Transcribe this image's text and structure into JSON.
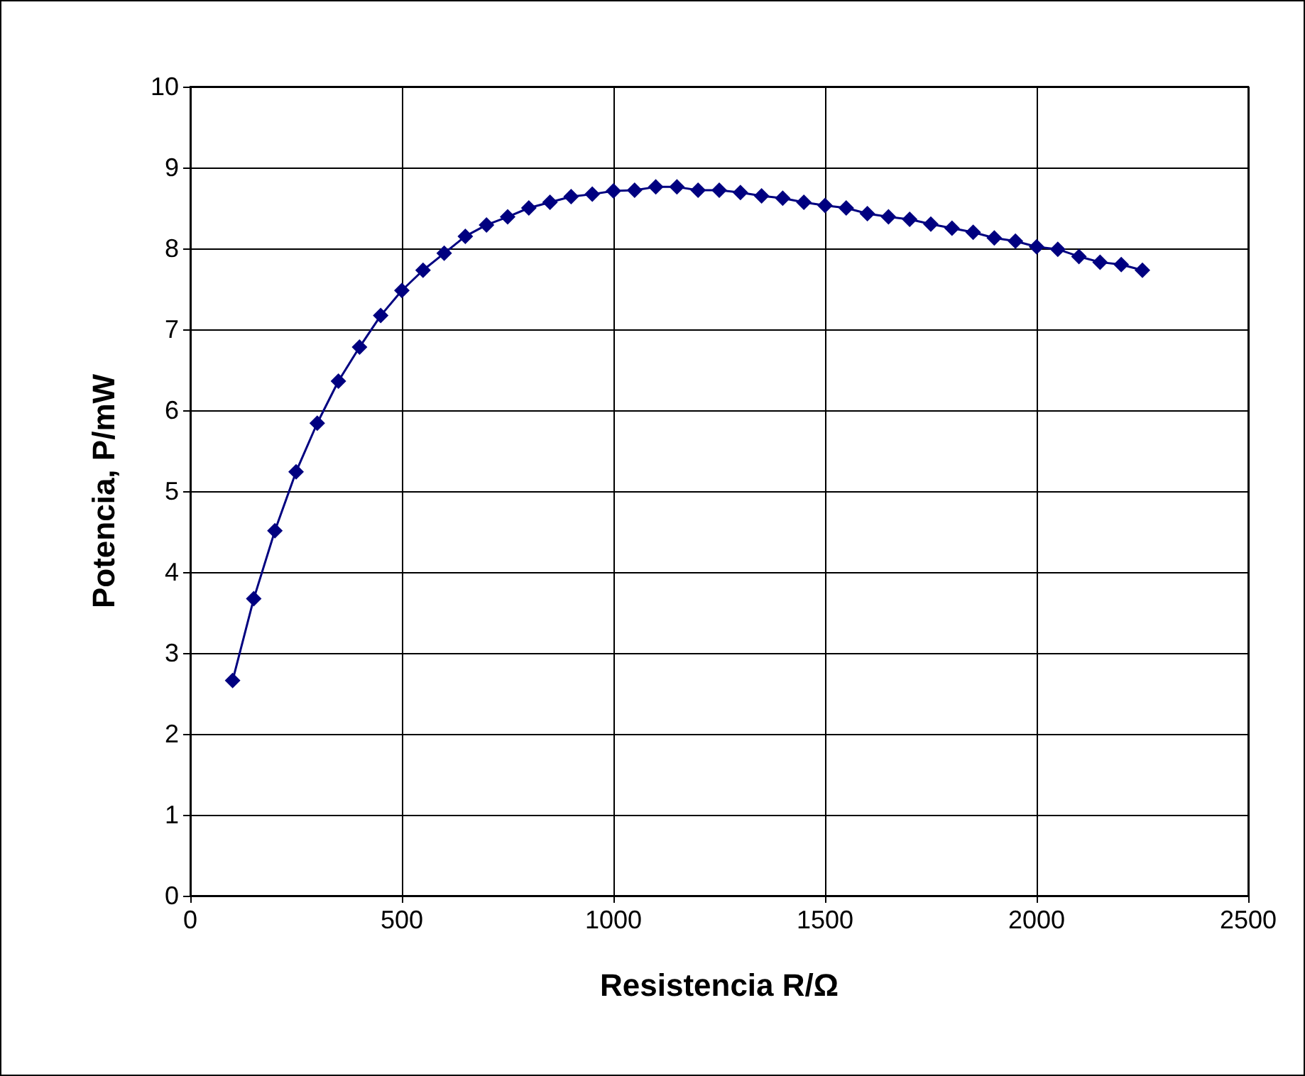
{
  "chart_data": {
    "type": "line",
    "xlabel": "Resistencia R/Ω",
    "ylabel": "Potencia, P/mW",
    "x": [
      100,
      150,
      200,
      250,
      300,
      350,
      400,
      450,
      500,
      550,
      600,
      650,
      700,
      750,
      800,
      850,
      900,
      950,
      1000,
      1050,
      1100,
      1150,
      1200,
      1250,
      1300,
      1350,
      1400,
      1450,
      1500,
      1550,
      1600,
      1650,
      1700,
      1750,
      1800,
      1850,
      1900,
      1950,
      2000,
      2050,
      2100,
      2150,
      2200,
      2250
    ],
    "series": [
      {
        "color": "#000080",
        "values": [
          2.66,
          3.67,
          4.51,
          5.24,
          5.84,
          6.36,
          6.78,
          7.17,
          7.48,
          7.73,
          7.94,
          8.15,
          8.29,
          8.39,
          8.5,
          8.57,
          8.64,
          8.67,
          8.71,
          8.72,
          8.76,
          8.76,
          8.72,
          8.72,
          8.69,
          8.65,
          8.62,
          8.57,
          8.53,
          8.5,
          8.43,
          8.39,
          8.36,
          8.3,
          8.25,
          8.2,
          8.13,
          8.09,
          8.02,
          7.99,
          7.9,
          7.83,
          7.8,
          7.73
        ]
      }
    ],
    "xlim": [
      0,
      2500
    ],
    "xticks": [
      0,
      500,
      1000,
      1500,
      2000,
      2500
    ],
    "ylim": [
      0,
      10
    ],
    "yticks": [
      0,
      1,
      2,
      3,
      4,
      5,
      6,
      7,
      8,
      9,
      10
    ],
    "grid": true,
    "marker": "diamond",
    "line_style": "solid"
  }
}
